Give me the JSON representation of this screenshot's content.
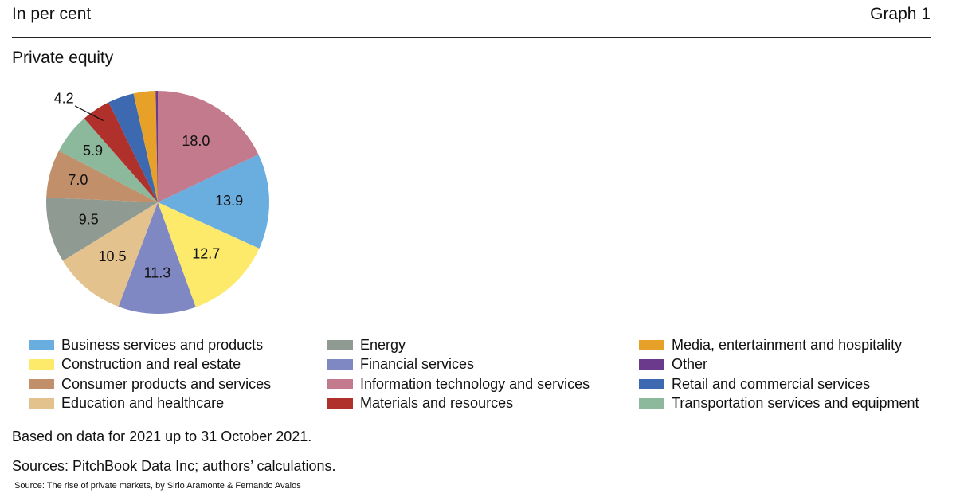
{
  "header": {
    "unit_label": "In per cent",
    "graph_label": "Graph 1"
  },
  "chart_data": {
    "type": "pie",
    "title": "Private equity",
    "slices": [
      {
        "name": "Information technology and services",
        "value": 18.0,
        "label": "18.0",
        "color": "#c27a8c"
      },
      {
        "name": "Business services and products",
        "value": 13.9,
        "label": "13.9",
        "color": "#6aaee0"
      },
      {
        "name": "Construction and real estate",
        "value": 12.7,
        "label": "12.7",
        "color": "#fde96a"
      },
      {
        "name": "Financial services",
        "value": 11.3,
        "label": "11.3",
        "color": "#8088c4"
      },
      {
        "name": "Education and healthcare",
        "value": 10.5,
        "label": "10.5",
        "color": "#e3c28d"
      },
      {
        "name": "Energy",
        "value": 9.5,
        "label": "9.5",
        "color": "#8f9a93"
      },
      {
        "name": "Consumer products and services",
        "value": 7.0,
        "label": "7.0",
        "color": "#c1906a"
      },
      {
        "name": "Transportation services and equipment",
        "value": 5.9,
        "label": "5.9",
        "color": "#8cb89c"
      },
      {
        "name": "Materials and resources",
        "value": 4.2,
        "label": "4.2",
        "color": "#b0302c"
      },
      {
        "name": "Retail and commercial services",
        "value": 3.8,
        "label": "",
        "color": "#3c69b0"
      },
      {
        "name": "Media, entertainment and hospitality",
        "value": 3.2,
        "label": "",
        "color": "#e8a128"
      },
      {
        "name": "Other",
        "value": 0.3,
        "label": "",
        "color": "#6b3a8c"
      }
    ],
    "legend": [
      [
        {
          "name": "Business services and products",
          "color": "#6aaee0"
        },
        {
          "name": "Construction and real estate",
          "color": "#fde96a"
        },
        {
          "name": "Consumer products and services",
          "color": "#c1906a"
        },
        {
          "name": "Education and healthcare",
          "color": "#e3c28d"
        }
      ],
      [
        {
          "name": "Energy",
          "color": "#8f9a93"
        },
        {
          "name": "Financial services",
          "color": "#8088c4"
        },
        {
          "name": "Information technology and services",
          "color": "#c27a8c"
        },
        {
          "name": "Materials and resources",
          "color": "#b0302c"
        }
      ],
      [
        {
          "name": "Media, entertainment and hospitality",
          "color": "#e8a128"
        },
        {
          "name": "Other",
          "color": "#6b3a8c"
        },
        {
          "name": "Retail and commercial services",
          "color": "#3c69b0"
        },
        {
          "name": "Transportation services and equipment",
          "color": "#8cb89c"
        }
      ]
    ]
  },
  "notes": {
    "based_on": "Based on data for 2021 up to 31 October 2021.",
    "sources": "Sources: PitchBook Data Inc; authors’ calculations.",
    "attribution": "Source: The rise of private markets, by Sirio Aramonte & Fernando Avalos"
  }
}
